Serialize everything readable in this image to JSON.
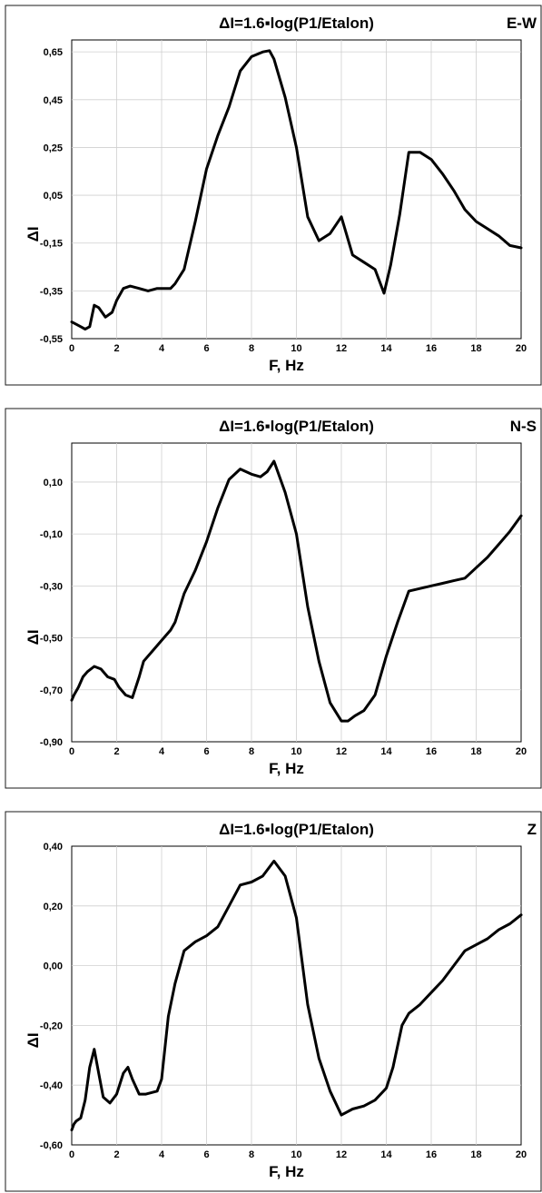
{
  "chart_data": [
    {
      "type": "line",
      "title": "ΔI=1.6▪log(P1/Etalon)",
      "component_label": "E-W",
      "xlabel": "F, Hz",
      "ylabel": "ΔI",
      "xlim": [
        0,
        20
      ],
      "ylim": [
        -0.55,
        0.7
      ],
      "xticks": [
        0,
        2,
        4,
        6,
        8,
        10,
        12,
        14,
        16,
        18,
        20
      ],
      "xtick_labels": [
        "0",
        "2",
        "4",
        "6",
        "8",
        "10",
        "12",
        "14",
        "16",
        "18",
        "20"
      ],
      "yticks": [
        -0.55,
        -0.35,
        -0.15,
        0.05,
        0.25,
        0.45,
        0.65
      ],
      "ytick_labels": [
        "-0,55",
        "-0,35",
        "-0,15",
        "0,05",
        "0,25",
        "0,45",
        "0,65"
      ],
      "grid": true,
      "series": [
        {
          "x": [
            0,
            0.2,
            0.4,
            0.6,
            0.8,
            1.0,
            1.2,
            1.5,
            1.8,
            2.0,
            2.3,
            2.6,
            3.0,
            3.4,
            3.8,
            4.0,
            4.4,
            4.6,
            5.0,
            5.5,
            6.0,
            6.5,
            7.0,
            7.5,
            8.0,
            8.5,
            8.8,
            9.0,
            9.5,
            10.0,
            10.5,
            11.0,
            11.5,
            12.0,
            12.5,
            13.0,
            13.5,
            13.9,
            14.2,
            14.6,
            15.0,
            15.5,
            16.0,
            16.5,
            17.0,
            17.5,
            18.0,
            18.5,
            19.0,
            19.5,
            20.0
          ],
          "y": [
            -0.48,
            -0.49,
            -0.5,
            -0.51,
            -0.5,
            -0.41,
            -0.42,
            -0.46,
            -0.44,
            -0.39,
            -0.34,
            -0.33,
            -0.34,
            -0.35,
            -0.34,
            -0.34,
            -0.34,
            -0.32,
            -0.26,
            -0.06,
            0.16,
            0.3,
            0.42,
            0.57,
            0.63,
            0.65,
            0.655,
            0.62,
            0.46,
            0.25,
            -0.04,
            -0.14,
            -0.11,
            -0.04,
            -0.2,
            -0.23,
            -0.26,
            -0.36,
            -0.24,
            -0.03,
            0.23,
            0.23,
            0.2,
            0.14,
            0.07,
            -0.01,
            -0.06,
            -0.09,
            -0.12,
            -0.16,
            -0.17
          ]
        }
      ]
    },
    {
      "type": "line",
      "title": "ΔI=1.6▪log(P1/Etalon)",
      "component_label": "N-S",
      "xlabel": "F, Hz",
      "ylabel": "ΔI",
      "xlim": [
        0,
        20
      ],
      "ylim": [
        -0.9,
        0.25
      ],
      "xticks": [
        0,
        2,
        4,
        6,
        8,
        10,
        12,
        14,
        16,
        18,
        20
      ],
      "xtick_labels": [
        "0",
        "2",
        "4",
        "6",
        "8",
        "10",
        "12",
        "14",
        "16",
        "18",
        "20"
      ],
      "yticks": [
        -0.9,
        -0.7,
        -0.5,
        -0.3,
        -0.1,
        0.1
      ],
      "ytick_labels": [
        "-0,90",
        "-0,70",
        "-0,50",
        "-0,30",
        "-0,10",
        "0,10"
      ],
      "grid": true,
      "series": [
        {
          "x": [
            0,
            0.1,
            0.3,
            0.5,
            0.7,
            1.0,
            1.3,
            1.6,
            1.9,
            2.1,
            2.4,
            2.7,
            3.0,
            3.2,
            3.6,
            4.0,
            4.4,
            4.6,
            5.0,
            5.5,
            6.0,
            6.5,
            7.0,
            7.5,
            8.0,
            8.4,
            8.7,
            9.0,
            9.5,
            10.0,
            10.5,
            11.0,
            11.5,
            12.0,
            12.3,
            12.6,
            13.0,
            13.5,
            14.0,
            14.5,
            15.0,
            15.5,
            16.0,
            16.5,
            17.0,
            17.5,
            18.0,
            18.5,
            19.0,
            19.5,
            20.0
          ],
          "y": [
            -0.74,
            -0.72,
            -0.69,
            -0.65,
            -0.63,
            -0.61,
            -0.62,
            -0.65,
            -0.66,
            -0.69,
            -0.72,
            -0.73,
            -0.65,
            -0.59,
            -0.55,
            -0.51,
            -0.47,
            -0.44,
            -0.33,
            -0.24,
            -0.13,
            -0.0,
            0.11,
            0.15,
            0.13,
            0.12,
            0.14,
            0.18,
            0.06,
            -0.1,
            -0.38,
            -0.59,
            -0.75,
            -0.82,
            -0.82,
            -0.8,
            -0.78,
            -0.72,
            -0.57,
            -0.44,
            -0.32,
            -0.31,
            -0.3,
            -0.29,
            -0.28,
            -0.27,
            -0.23,
            -0.19,
            -0.14,
            -0.09,
            -0.03
          ]
        }
      ]
    },
    {
      "type": "line",
      "title": "ΔI=1.6▪log(P1/Etalon)",
      "component_label": "Z",
      "xlabel": "F, Hz",
      "ylabel": "ΔI",
      "xlim": [
        0,
        20
      ],
      "ylim": [
        -0.6,
        0.4
      ],
      "xticks": [
        0,
        2,
        4,
        6,
        8,
        10,
        12,
        14,
        16,
        18,
        20
      ],
      "xtick_labels": [
        "0",
        "2",
        "4",
        "6",
        "8",
        "10",
        "12",
        "14",
        "16",
        "18",
        "20"
      ],
      "yticks": [
        -0.6,
        -0.4,
        -0.2,
        0.0,
        0.2,
        0.4
      ],
      "ytick_labels": [
        "-0,60",
        "-0,40",
        "-0,20",
        "0,00",
        "0,20",
        "0,40"
      ],
      "grid": true,
      "series": [
        {
          "x": [
            0,
            0.1,
            0.2,
            0.4,
            0.6,
            0.8,
            1.0,
            1.2,
            1.4,
            1.7,
            2.0,
            2.3,
            2.5,
            2.7,
            3.0,
            3.3,
            3.8,
            4.0,
            4.3,
            4.6,
            5.0,
            5.5,
            6.0,
            6.5,
            7.0,
            7.5,
            8.0,
            8.5,
            9.0,
            9.5,
            10.0,
            10.5,
            11.0,
            11.5,
            12.0,
            12.5,
            13.0,
            13.5,
            14.0,
            14.3,
            14.7,
            15.0,
            15.5,
            16.0,
            16.5,
            17.0,
            17.5,
            18.0,
            18.5,
            19.0,
            19.5,
            20.0
          ],
          "y": [
            -0.55,
            -0.53,
            -0.52,
            -0.51,
            -0.45,
            -0.34,
            -0.28,
            -0.36,
            -0.44,
            -0.46,
            -0.43,
            -0.36,
            -0.34,
            -0.38,
            -0.43,
            -0.43,
            -0.42,
            -0.38,
            -0.17,
            -0.06,
            0.05,
            0.08,
            0.1,
            0.13,
            0.2,
            0.27,
            0.28,
            0.3,
            0.35,
            0.3,
            0.16,
            -0.13,
            -0.31,
            -0.42,
            -0.5,
            -0.48,
            -0.47,
            -0.45,
            -0.41,
            -0.34,
            -0.2,
            -0.16,
            -0.13,
            -0.09,
            -0.05,
            -0.0,
            0.05,
            0.07,
            0.09,
            0.12,
            0.14,
            0.17
          ]
        }
      ]
    }
  ]
}
